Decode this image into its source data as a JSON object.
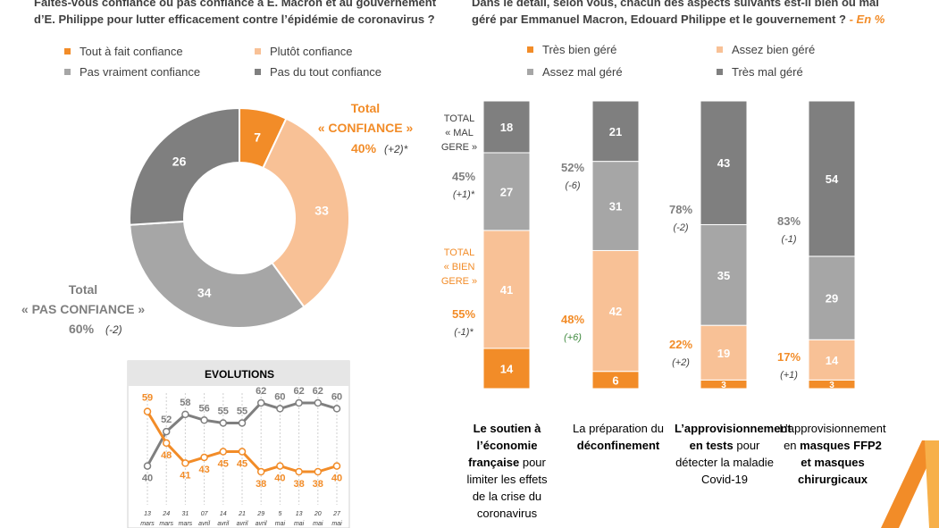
{
  "colors": {
    "tout_fait": "#f28c28",
    "plutot": "#f8c196",
    "pas_vraiment": "#a6a6a6",
    "pas_du_tout": "#7f7f7f",
    "orange_text": "#f28c28",
    "green_text": "#3f8a3f"
  },
  "left": {
    "question_line1": "Faites-vous confiance ou pas confiance à E. Macron et au gouvernement",
    "question_line2": "d’E. Philippe pour lutter efficacement contre l’épidémie de coronavirus ?",
    "legend": [
      "Tout à fait confiance",
      "Plutôt confiance",
      "Pas vraiment confiance",
      "Pas du tout confiance"
    ],
    "total_confiance": {
      "line1": "Total",
      "line2": "« CONFIANCE »",
      "pct": "40%",
      "change": "(+2)*"
    },
    "total_pas_confiance": {
      "line1": "Total",
      "line2": "« PAS CONFIANCE »",
      "pct": "60%",
      "change": "(-2)"
    },
    "evolutions_title": "EVOLUTIONS"
  },
  "right": {
    "question_line1": "Dans le détail, selon vous, chacun des aspects suivants est-il bien ou mal",
    "question_line2": "géré par Emmanuel Macron, Edouard Philippe et le gouvernement ?",
    "en_pct": "- En %",
    "legend": [
      "Très bien géré",
      "Assez bien géré",
      "Assez mal géré",
      "Très mal géré"
    ],
    "total_mal_gere": [
      "TOTAL",
      "« MAL",
      "GERE »"
    ],
    "total_bien_gere": [
      "TOTAL",
      "« BIEN",
      "GERE »"
    ],
    "bar_labels": [
      {
        "pre": "",
        "bold": "Le soutien à l’économie française",
        "post": "pour limiter les effets de la crise du coronavirus"
      },
      {
        "pre": "La préparation du",
        "bold": "déconfinement",
        "post": ""
      },
      {
        "pre": "",
        "bold": "L’approvisionnement en tests",
        "post": "pour détecter la maladie Covid-19"
      },
      {
        "pre": "L’approvisionnement en",
        "bold": "masques FFP2 et masques chirurgicaux",
        "post": ""
      }
    ]
  },
  "chart_data": [
    {
      "type": "pie",
      "variant": "donut",
      "categories": [
        "Tout à fait confiance",
        "Plutôt confiance",
        "Pas vraiment confiance",
        "Pas du tout confiance"
      ],
      "values": [
        7,
        33,
        34,
        26
      ]
    },
    {
      "type": "line",
      "title": "EVOLUTIONS",
      "x_day": [
        "13",
        "24",
        "31",
        "07",
        "14",
        "21",
        "29",
        "5",
        "13",
        "20",
        "27"
      ],
      "x_month": [
        "mars",
        "mars",
        "mars",
        "avril",
        "avril",
        "avril",
        "avril",
        "mai",
        "mai",
        "mai",
        "mai"
      ],
      "series": [
        {
          "name": "Pas confiance",
          "values": [
            40,
            52,
            58,
            56,
            55,
            55,
            62,
            60,
            62,
            62,
            60
          ]
        },
        {
          "name": "Confiance",
          "values": [
            59,
            48,
            41,
            43,
            45,
            45,
            38,
            40,
            38,
            38,
            40
          ]
        }
      ],
      "ylim": [
        30,
        70
      ]
    },
    {
      "type": "bar",
      "stacked": true,
      "categories": [
        "Soutien économie",
        "Préparation déconfinement",
        "Approvisionnement tests",
        "Approvisionnement masques"
      ],
      "series": [
        {
          "name": "Très bien géré",
          "values": [
            14,
            6,
            3,
            3
          ]
        },
        {
          "name": "Assez bien géré",
          "values": [
            41,
            42,
            19,
            14
          ]
        },
        {
          "name": "Assez mal géré",
          "values": [
            27,
            31,
            35,
            29
          ]
        },
        {
          "name": "Très mal géré",
          "values": [
            18,
            21,
            43,
            54
          ]
        }
      ],
      "total_mal": [
        "45%",
        "52%",
        "78%",
        "83%"
      ],
      "total_mal_change": [
        "(+1)*",
        "(-6)",
        "(-2)",
        "(-1)"
      ],
      "total_bien": [
        "55%",
        "48%",
        "22%",
        "17%"
      ],
      "total_bien_change": [
        "(-1)*",
        "(+6)",
        "(+2)",
        "(+1)"
      ]
    }
  ]
}
